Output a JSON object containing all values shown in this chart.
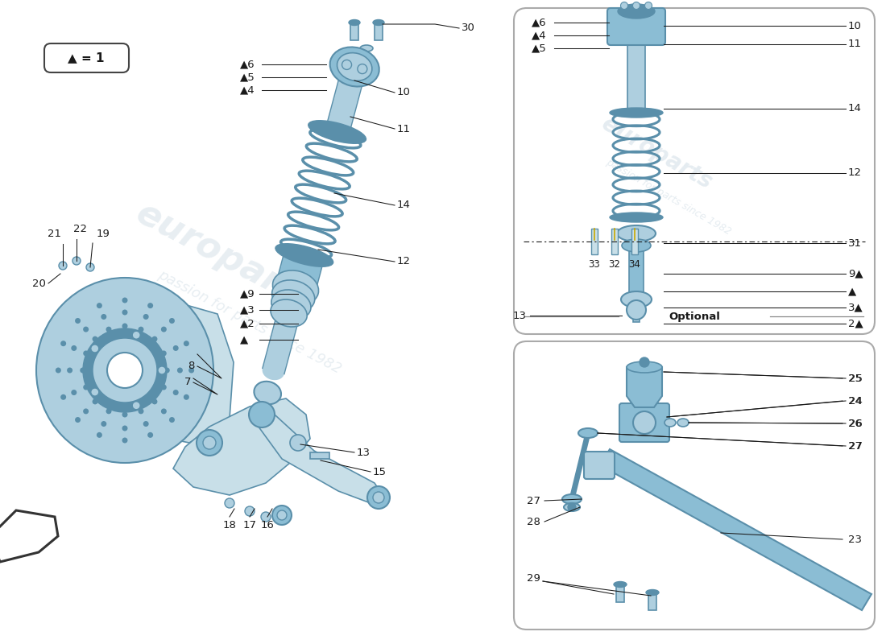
{
  "bg_color": "#ffffff",
  "pc": "#8bbdd4",
  "pc2": "#aecfdf",
  "pcd": "#5a8faa",
  "pcl": "#c8dfe8",
  "lc": "#1a1a1a",
  "tc": "#1a1a1a",
  "legend_text": "▲ = 1",
  "optional_label": "Optional",
  "watermark1": "europarts",
  "watermark2": "passion for parts since 1982"
}
